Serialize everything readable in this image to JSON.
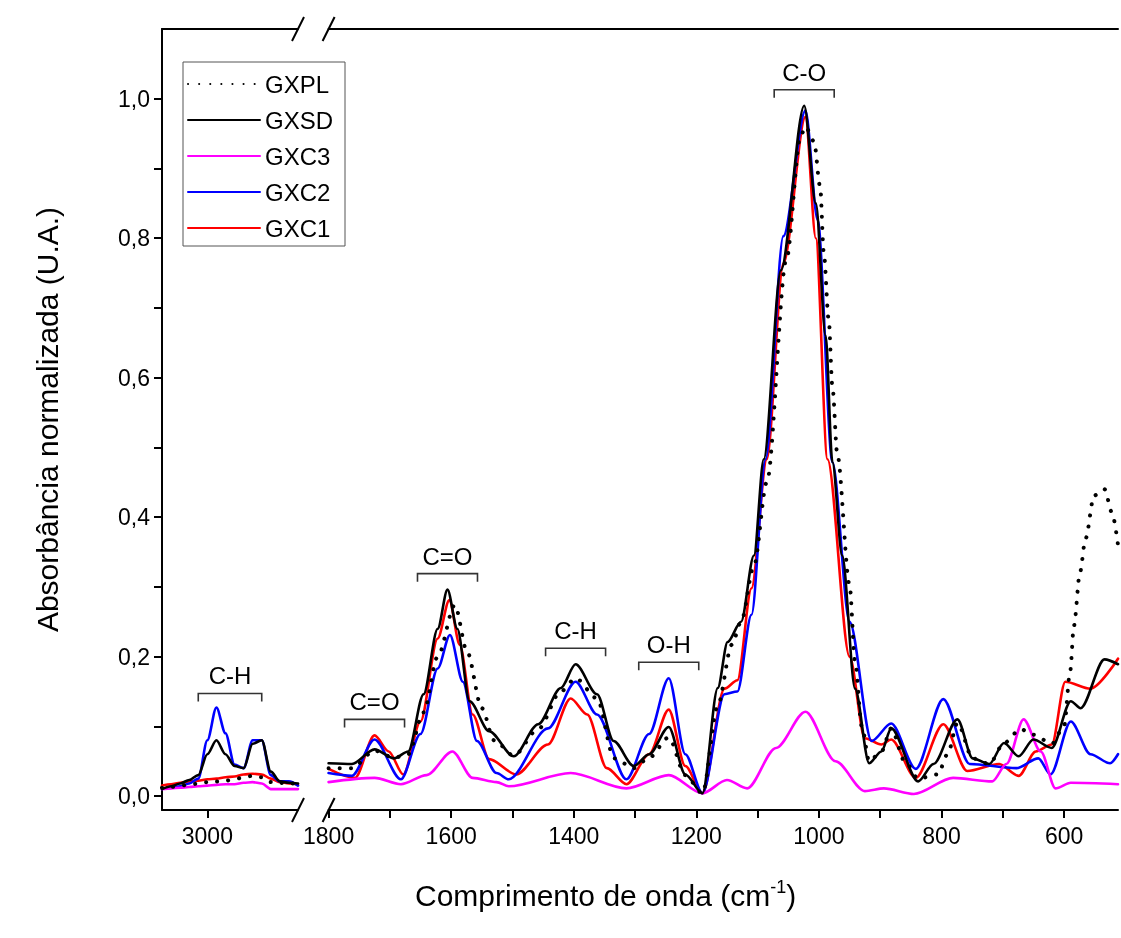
{
  "chart_data": [
    {
      "type": "line",
      "ylabel": "Absorbância normalizada (U.A.)",
      "categories": [
        null,
        null,
        null,
        null,
        null,
        "3000",
        null,
        null,
        null,
        null,
        null,
        null,
        null,
        null,
        null,
        null
      ],
      "ylim": [
        -0.02,
        1.1
      ],
      "yticks": [
        {
          "value": 0,
          "label": "0,0"
        },
        {
          "value": 0.1,
          "label": null
        },
        {
          "value": 0.2,
          "label": "0,2"
        },
        {
          "value": 0.3,
          "label": null
        },
        {
          "value": 0.4,
          "label": "0,4"
        },
        {
          "value": 0.5,
          "label": null
        },
        {
          "value": 0.6,
          "label": "0,6"
        },
        {
          "value": 0.7,
          "label": null
        },
        {
          "value": 0.8,
          "label": "0,8"
        },
        {
          "value": 0.9,
          "label": null
        },
        {
          "value": 1,
          "label": "1,0"
        }
      ],
      "legend": "top right",
      "marker": "none",
      "annotations": [
        "C-H"
      ],
      "series": [
        {
          "name": "GXPL",
          "color": "#000000",
          "line_style": "dotted",
          "values": [
            0.012,
            0.013,
            0.015,
            0.016,
            0.018,
            0.02,
            0.021,
            0.022,
            0.024,
            0.027,
            0.029,
            0.027,
            0.02,
            0.019,
            0.018,
            0.018
          ]
        },
        {
          "name": "GXSD",
          "color": "#000000",
          "line_style": "solid",
          "values": [
            0.01,
            0.014,
            0.018,
            0.023,
            0.03,
            0.06,
            0.08,
            0.06,
            0.043,
            0.04,
            0.075,
            0.08,
            0.035,
            0.021,
            0.019,
            0.018
          ]
        },
        {
          "name": "GXC3",
          "color": "#ff00ff",
          "line_style": "solid",
          "values": [
            0.01,
            0.011,
            0.012,
            0.013,
            0.014,
            0.015,
            0.016,
            0.017,
            0.017,
            0.019,
            0.02,
            0.018,
            0.01,
            0.01,
            0.01,
            0.01
          ]
        },
        {
          "name": "GXC2",
          "color": "#0000ff",
          "line_style": "solid",
          "values": [
            0.01,
            0.012,
            0.014,
            0.018,
            0.025,
            0.08,
            0.127,
            0.09,
            0.045,
            0.04,
            0.08,
            0.08,
            0.03,
            0.021,
            0.021,
            0.015
          ]
        },
        {
          "name": "GXC1",
          "color": "#ff0000",
          "line_style": "solid",
          "values": [
            0.015,
            0.017,
            0.019,
            0.021,
            0.022,
            0.024,
            0.025,
            0.027,
            0.028,
            0.031,
            0.032,
            0.031,
            0.025,
            0.02,
            0.018,
            0.017
          ]
        }
      ]
    },
    {
      "type": "line",
      "xlabel": "Comprimento de onda (cm$^{-1}$)",
      "xlim": [
        1800,
        512
      ],
      "xticks": [
        1800,
        {
          "value": 1700,
          "label": null
        },
        1600,
        {
          "value": 1500,
          "label": null
        },
        1400,
        {
          "value": 1300,
          "label": null
        },
        1200,
        {
          "value": 1100,
          "label": null
        },
        1000,
        {
          "value": 900,
          "label": null
        },
        800,
        {
          "value": 700,
          "label": null
        },
        600
      ],
      "ylim": [
        -0.02,
        1.1
      ],
      "tick_labels": "x",
      "marker": "none",
      "annotations": [
        {
          "text": "C=O",
          "x": 1725,
          "y": 0.087
        },
        {
          "text": "C=O",
          "x": 1606,
          "y": 0.296
        },
        {
          "text": "C-H",
          "x": 1397,
          "y": 0.189
        },
        {
          "text": "O-H",
          "x": 1245,
          "y": 0.169
        },
        {
          "text": "C-O",
          "x": 1024,
          "y": 0.99
        }
      ],
      "series": [
        {
          "color": "#000000",
          "line_style": "dotted",
          "x": [
            1800,
            1762,
            1725,
            1693,
            1670,
            1645,
            1622,
            1594,
            1574,
            1550,
            1530,
            1498,
            1458,
            1421,
            1397,
            1362,
            1334,
            1302,
            1277,
            1245,
            1218,
            1190,
            1165,
            1142,
            1127,
            1106,
            1085,
            1053,
            1030,
            1022,
            1008,
            998,
            992,
            984,
            978,
            970,
            950,
            941,
            930,
            918,
            898,
            882,
            860,
            838,
            806,
            790,
            774,
            749,
            722,
            698,
            671,
            650,
            620,
            600,
            590,
            584,
            574,
            565,
            551,
            534,
            522,
            512
          ],
          "values": [
            0.04,
            0.04,
            0.065,
            0.055,
            0.06,
            0.12,
            0.2,
            0.274,
            0.207,
            0.126,
            0.08,
            0.058,
            0.096,
            0.15,
            0.169,
            0.14,
            0.054,
            0.04,
            0.055,
            0.084,
            0.03,
            0.004,
            0.13,
            0.217,
            0.25,
            0.33,
            0.45,
            0.77,
            0.946,
            0.96,
            0.939,
            0.874,
            0.779,
            0.683,
            0.588,
            0.49,
            0.303,
            0.193,
            0.1,
            0.05,
            0.064,
            0.097,
            0.05,
            0.025,
            0.031,
            0.06,
            0.105,
            0.054,
            0.046,
            0.076,
            0.096,
            0.088,
            0.075,
            0.1,
            0.179,
            0.244,
            0.321,
            0.369,
            0.431,
            0.44,
            0.407,
            0.36
          ]
        },
        {
          "color": "#000000",
          "line_style": "solid",
          "x": [
            1800,
            1762,
            1725,
            1693,
            1670,
            1645,
            1622,
            1606,
            1590,
            1570,
            1538,
            1498,
            1458,
            1421,
            1397,
            1362,
            1335,
            1302,
            1277,
            1245,
            1218,
            1190,
            1165,
            1149,
            1127,
            1106,
            1090,
            1062,
            1024,
            1005,
            989,
            978,
            962,
            941,
            918,
            898,
            882,
            838,
            813,
            774,
            749,
            722,
            698,
            674,
            650,
            620,
            589,
            573,
            534,
            512
          ],
          "values": [
            0.047,
            0.046,
            0.067,
            0.054,
            0.064,
            0.146,
            0.24,
            0.296,
            0.24,
            0.136,
            0.093,
            0.057,
            0.103,
            0.155,
            0.189,
            0.146,
            0.079,
            0.043,
            0.06,
            0.099,
            0.031,
            0.004,
            0.155,
            0.221,
            0.25,
            0.345,
            0.483,
            0.754,
            0.99,
            0.85,
            0.66,
            0.479,
            0.345,
            0.154,
            0.047,
            0.064,
            0.097,
            0.021,
            0.046,
            0.11,
            0.054,
            0.046,
            0.076,
            0.057,
            0.081,
            0.069,
            0.136,
            0.126,
            0.196,
            0.189
          ]
        },
        {
          "color": "#ff00ff",
          "line_style": "solid",
          "x": [
            1800,
            1725,
            1682,
            1640,
            1598,
            1565,
            1526,
            1506,
            1405,
            1314,
            1245,
            1190,
            1150,
            1117,
            1070,
            1022,
            973,
            925,
            894,
            845,
            781,
            717,
            694,
            666,
            638,
            614,
            589,
            512
          ],
          "values": [
            0.02,
            0.026,
            0.017,
            0.03,
            0.064,
            0.026,
            0.02,
            0.014,
            0.033,
            0.011,
            0.03,
            0.004,
            0.023,
            0.011,
            0.069,
            0.121,
            0.05,
            0.007,
            0.011,
            0.003,
            0.026,
            0.021,
            0.046,
            0.11,
            0.064,
            0.011,
            0.019,
            0.017
          ]
        },
        {
          "color": "#0000ff",
          "line_style": "solid",
          "x": [
            1800,
            1762,
            1725,
            1682,
            1650,
            1622,
            1602,
            1581,
            1558,
            1526,
            1506,
            1442,
            1397,
            1362,
            1314,
            1277,
            1245,
            1218,
            1190,
            1154,
            1133,
            1110,
            1087,
            1058,
            1022,
            1002,
            978,
            950,
            914,
            882,
            842,
            797,
            754,
            678,
            642,
            622,
            589,
            557,
            525,
            512
          ],
          "values": [
            0.033,
            0.029,
            0.081,
            0.024,
            0.089,
            0.183,
            0.231,
            0.164,
            0.079,
            0.033,
            0.024,
            0.097,
            0.164,
            0.117,
            0.024,
            0.089,
            0.169,
            0.06,
            0.004,
            0.146,
            0.15,
            0.26,
            0.483,
            0.803,
            0.983,
            0.826,
            0.479,
            0.25,
            0.079,
            0.104,
            0.039,
            0.139,
            0.046,
            0.04,
            0.054,
            0.031,
            0.107,
            0.06,
            0.047,
            0.06
          ]
        },
        {
          "color": "#ff0000",
          "line_style": "solid",
          "x": [
            1800,
            1757,
            1725,
            1702,
            1678,
            1650,
            1622,
            1603,
            1586,
            1565,
            1538,
            1494,
            1442,
            1405,
            1378,
            1346,
            1314,
            1277,
            1245,
            1218,
            1190,
            1154,
            1133,
            1110,
            1085,
            1058,
            1022,
            1005,
            986,
            950,
            925,
            898,
            882,
            842,
            797,
            758,
            706,
            674,
            646,
            620,
            598,
            557,
            512
          ],
          "values": [
            0.039,
            0.026,
            0.087,
            0.064,
            0.031,
            0.107,
            0.226,
            0.281,
            0.217,
            0.117,
            0.053,
            0.031,
            0.074,
            0.14,
            0.117,
            0.04,
            0.017,
            0.06,
            0.124,
            0.043,
            0.004,
            0.154,
            0.166,
            0.298,
            0.483,
            0.764,
            0.974,
            0.8,
            0.483,
            0.2,
            0.083,
            0.074,
            0.081,
            0.026,
            0.103,
            0.036,
            0.046,
            0.029,
            0.064,
            0.074,
            0.164,
            0.154,
            0.197
          ]
        }
      ]
    }
  ]
}
